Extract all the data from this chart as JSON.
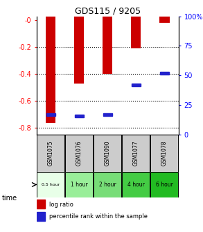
{
  "title": "GDS115 / 9205",
  "samples": [
    "GSM1075",
    "GSM1076",
    "GSM1090",
    "GSM1077",
    "GSM1078"
  ],
  "time_labels": [
    "0.5 hour",
    "1 hour",
    "2 hour",
    "4 hour",
    "6 hour"
  ],
  "log_ratios": [
    -0.76,
    -0.47,
    -0.4,
    -0.21,
    -0.02
  ],
  "percentile_ranks": [
    17,
    16,
    17,
    42,
    52
  ],
  "ylim_left": [
    -0.85,
    0.03
  ],
  "ylim_right": [
    0,
    100
  ],
  "yticks_left": [
    0,
    -0.2,
    -0.4,
    -0.6,
    -0.8
  ],
  "ytick_labels_left": [
    "-0",
    "-0.2",
    "-0.4",
    "-0.6",
    "-0.8"
  ],
  "yticks_right": [
    100,
    75,
    50,
    25,
    0
  ],
  "ytick_labels_right": [
    "100%",
    "75",
    "50",
    "25",
    "0"
  ],
  "bar_color": "#cc0000",
  "percentile_color": "#2222cc",
  "bg_color": "#ffffff",
  "sample_bg": "#cccccc",
  "time_bg_colors": [
    "#e8ffe8",
    "#99ee99",
    "#77dd77",
    "#44cc44",
    "#22bb22"
  ],
  "legend_log_ratio": "log ratio",
  "legend_percentile": "percentile rank within the sample",
  "time_label": "time",
  "bar_width": 0.35
}
